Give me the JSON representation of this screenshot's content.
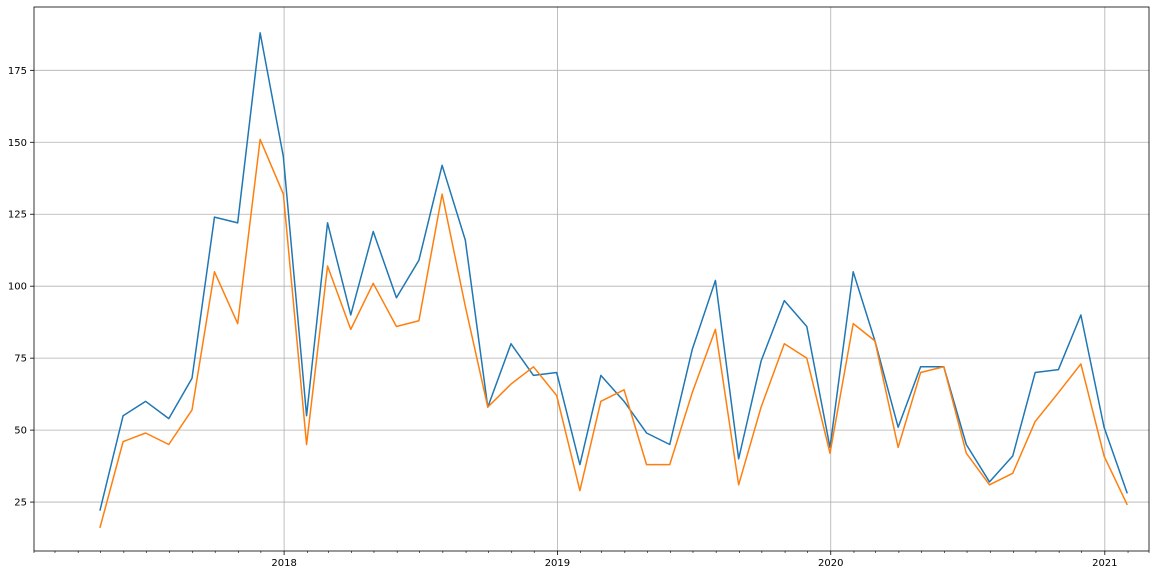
{
  "chart_data": {
    "type": "line",
    "title": "",
    "xlabel": "",
    "ylabel": "",
    "grid": true,
    "xlim": [
      "2017-02-01",
      "2021-03-01"
    ],
    "ylim": [
      8,
      197
    ],
    "x_ticks": [
      {
        "date": "2018-01-01",
        "label": "2018"
      },
      {
        "date": "2019-01-01",
        "label": "2019"
      },
      {
        "date": "2020-01-01",
        "label": "2020"
      },
      {
        "date": "2021-01-01",
        "label": "2021"
      }
    ],
    "y_ticks": [
      25,
      50,
      75,
      100,
      125,
      150,
      175
    ],
    "x": [
      "2017-04-30",
      "2017-05-31",
      "2017-06-30",
      "2017-07-31",
      "2017-08-31",
      "2017-09-30",
      "2017-10-31",
      "2017-11-30",
      "2017-12-31",
      "2018-01-31",
      "2018-02-28",
      "2018-03-31",
      "2018-04-30",
      "2018-05-31",
      "2018-06-30",
      "2018-07-31",
      "2018-08-31",
      "2018-09-30",
      "2018-10-31",
      "2018-11-30",
      "2018-12-31",
      "2019-01-31",
      "2019-02-28",
      "2019-03-31",
      "2019-04-30",
      "2019-05-31",
      "2019-06-30",
      "2019-07-31",
      "2019-08-31",
      "2019-09-30",
      "2019-10-31",
      "2019-11-30",
      "2019-12-31",
      "2020-01-31",
      "2020-02-29",
      "2020-03-31",
      "2020-04-30",
      "2020-05-31",
      "2020-06-30",
      "2020-07-31",
      "2020-08-31",
      "2020-09-30",
      "2020-10-31",
      "2020-11-30",
      "2020-12-31",
      "2021-01-31"
    ],
    "series": [
      {
        "color": "#1f77b4",
        "values": [
          22,
          55,
          60,
          54,
          68,
          124,
          122,
          188,
          145,
          55,
          122,
          90,
          119,
          96,
          109,
          142,
          116,
          58,
          80,
          69,
          70,
          38,
          69,
          60,
          49,
          45,
          78,
          102,
          40,
          74,
          95,
          86,
          44,
          105,
          81,
          51,
          72,
          72,
          45,
          32,
          41,
          70,
          71,
          90,
          51,
          28
        ]
      },
      {
        "color": "#ff7f0e",
        "values": [
          16,
          46,
          49,
          45,
          57,
          105,
          87,
          151,
          132,
          45,
          107,
          85,
          101,
          86,
          88,
          132,
          93,
          58,
          66,
          72,
          62,
          29,
          60,
          64,
          38,
          38,
          63,
          85,
          31,
          58,
          80,
          75,
          42,
          87,
          81,
          44,
          70,
          72,
          42,
          31,
          35,
          53,
          63,
          73,
          41,
          24
        ]
      }
    ]
  }
}
